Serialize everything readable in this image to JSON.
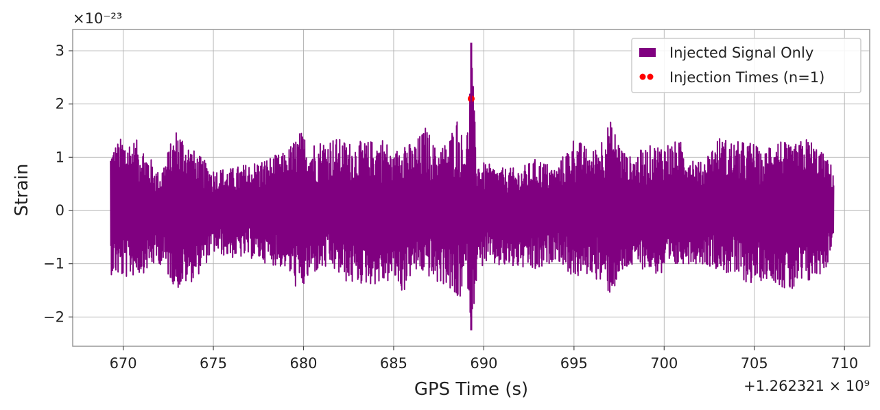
{
  "chart_data": {
    "type": "line",
    "xlabel": "GPS Time (s)",
    "ylabel": "Strain",
    "x_offset_label": "+1.262321 × 10⁹",
    "y_multiplier_label": "×10⁻²³",
    "xlim": [
      667.2,
      711.4
    ],
    "ylim": [
      -2.55,
      3.4
    ],
    "xticks": [
      670,
      675,
      680,
      685,
      690,
      695,
      700,
      705,
      710
    ],
    "xtick_labels": [
      "670",
      "675",
      "680",
      "685",
      "690",
      "695",
      "700",
      "705",
      "710"
    ],
    "yticks": [
      -2,
      -1,
      0,
      1,
      2,
      3
    ],
    "ytick_labels": [
      "−2",
      "−1",
      "0",
      "1",
      "2",
      "3"
    ],
    "grid": true,
    "legend_position": "top-right",
    "colors": {
      "signal": "#800080",
      "injection": "#ff0000",
      "grid": "#b0b0b0",
      "frame": "#999999"
    },
    "series": [
      {
        "name": "Injected Signal Only",
        "kind": "line",
        "x_range": [
          669.3,
          709.4
        ],
        "envelope": {
          "x": [
            669.3,
            670.0,
            671.0,
            672.0,
            673.0,
            674.0,
            675.0,
            676.0,
            677.0,
            678.0,
            679.0,
            679.8,
            680.5,
            681.5,
            682.5,
            683.5,
            684.5,
            685.0,
            685.5,
            686.0,
            686.8,
            687.3,
            688.0,
            688.5,
            688.9,
            689.1,
            689.3,
            689.6,
            690.0,
            691.0,
            692.0,
            693.0,
            694.0,
            695.0,
            696.0,
            697.0,
            698.0,
            699.0,
            700.0,
            701.0,
            702.0,
            703.0,
            704.0,
            705.0,
            705.5,
            706.0,
            707.0,
            708.0,
            709.0,
            709.4
          ],
          "upper": [
            1.2,
            1.4,
            1.3,
            0.7,
            1.6,
            1.1,
            0.8,
            0.8,
            0.9,
            1.0,
            1.1,
            1.5,
            1.3,
            1.4,
            1.3,
            1.3,
            1.4,
            1.0,
            1.5,
            1.2,
            1.6,
            1.2,
            1.3,
            1.8,
            1.3,
            1.6,
            3.15,
            1.0,
            0.9,
            0.8,
            0.8,
            1.0,
            0.8,
            1.4,
            1.1,
            1.7,
            1.0,
            1.2,
            1.3,
            1.3,
            0.9,
            1.4,
            1.3,
            1.3,
            1.0,
            1.5,
            1.2,
            1.4,
            1.0,
            0.8
          ],
          "lower": [
            -1.2,
            -1.3,
            -1.2,
            -1.0,
            -1.5,
            -1.3,
            -0.8,
            -0.9,
            -0.9,
            -1.0,
            -1.1,
            -1.6,
            -1.2,
            -1.1,
            -1.4,
            -1.4,
            -1.4,
            -1.3,
            -1.6,
            -1.2,
            -1.2,
            -1.4,
            -1.4,
            -1.9,
            -1.4,
            -1.4,
            -2.25,
            -1.3,
            -1.0,
            -1.1,
            -1.1,
            -1.2,
            -0.9,
            -1.3,
            -1.2,
            -1.6,
            -1.1,
            -1.1,
            -1.3,
            -1.0,
            -1.0,
            -1.1,
            -1.3,
            -1.4,
            -1.3,
            -1.3,
            -1.6,
            -1.4,
            -1.1,
            -0.5
          ]
        }
      },
      {
        "name": "Injection Times (n=1)",
        "kind": "scatter",
        "x": [
          689.3
        ],
        "y": [
          2.1
        ]
      }
    ]
  }
}
